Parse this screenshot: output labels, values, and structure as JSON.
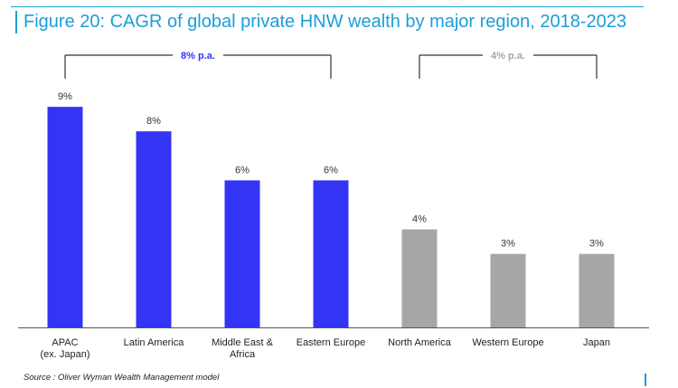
{
  "title": "Figure 20: CAGR of global private HNW wealth by major region, 2018-2023",
  "source": "Source : Oliver Wyman Wealth Management model",
  "colors": {
    "title": "#1a9ed9",
    "blue": "#3434f5",
    "grey": "#a6a6a6",
    "bracket": "#333333",
    "axis": "#555555"
  },
  "chart_data": {
    "type": "bar",
    "categories": [
      "APAC\n(ex. Japan)",
      "Latin America",
      "Middle East &\nAfrica",
      "Eastern Europe",
      "North America",
      "Western Europe",
      "Japan"
    ],
    "values": [
      9,
      8,
      6,
      6,
      4,
      3,
      3
    ],
    "data_labels": [
      "9%",
      "8%",
      "6%",
      "6%",
      "4%",
      "3%",
      "3%"
    ],
    "bar_colors": [
      "#3434f5",
      "#3434f5",
      "#3434f5",
      "#3434f5",
      "#a6a6a6",
      "#a6a6a6",
      "#a6a6a6"
    ],
    "ylim": [
      0,
      9.3
    ],
    "grid": false,
    "xlabel": "",
    "ylabel": "",
    "annotations": [
      {
        "label": "8% p.a.",
        "from_category": 0,
        "to_category": 3,
        "color": "#3434f5"
      },
      {
        "label": "4% p.a.",
        "from_category": 4,
        "to_category": 6,
        "color": "#a6a6a6"
      }
    ]
  }
}
